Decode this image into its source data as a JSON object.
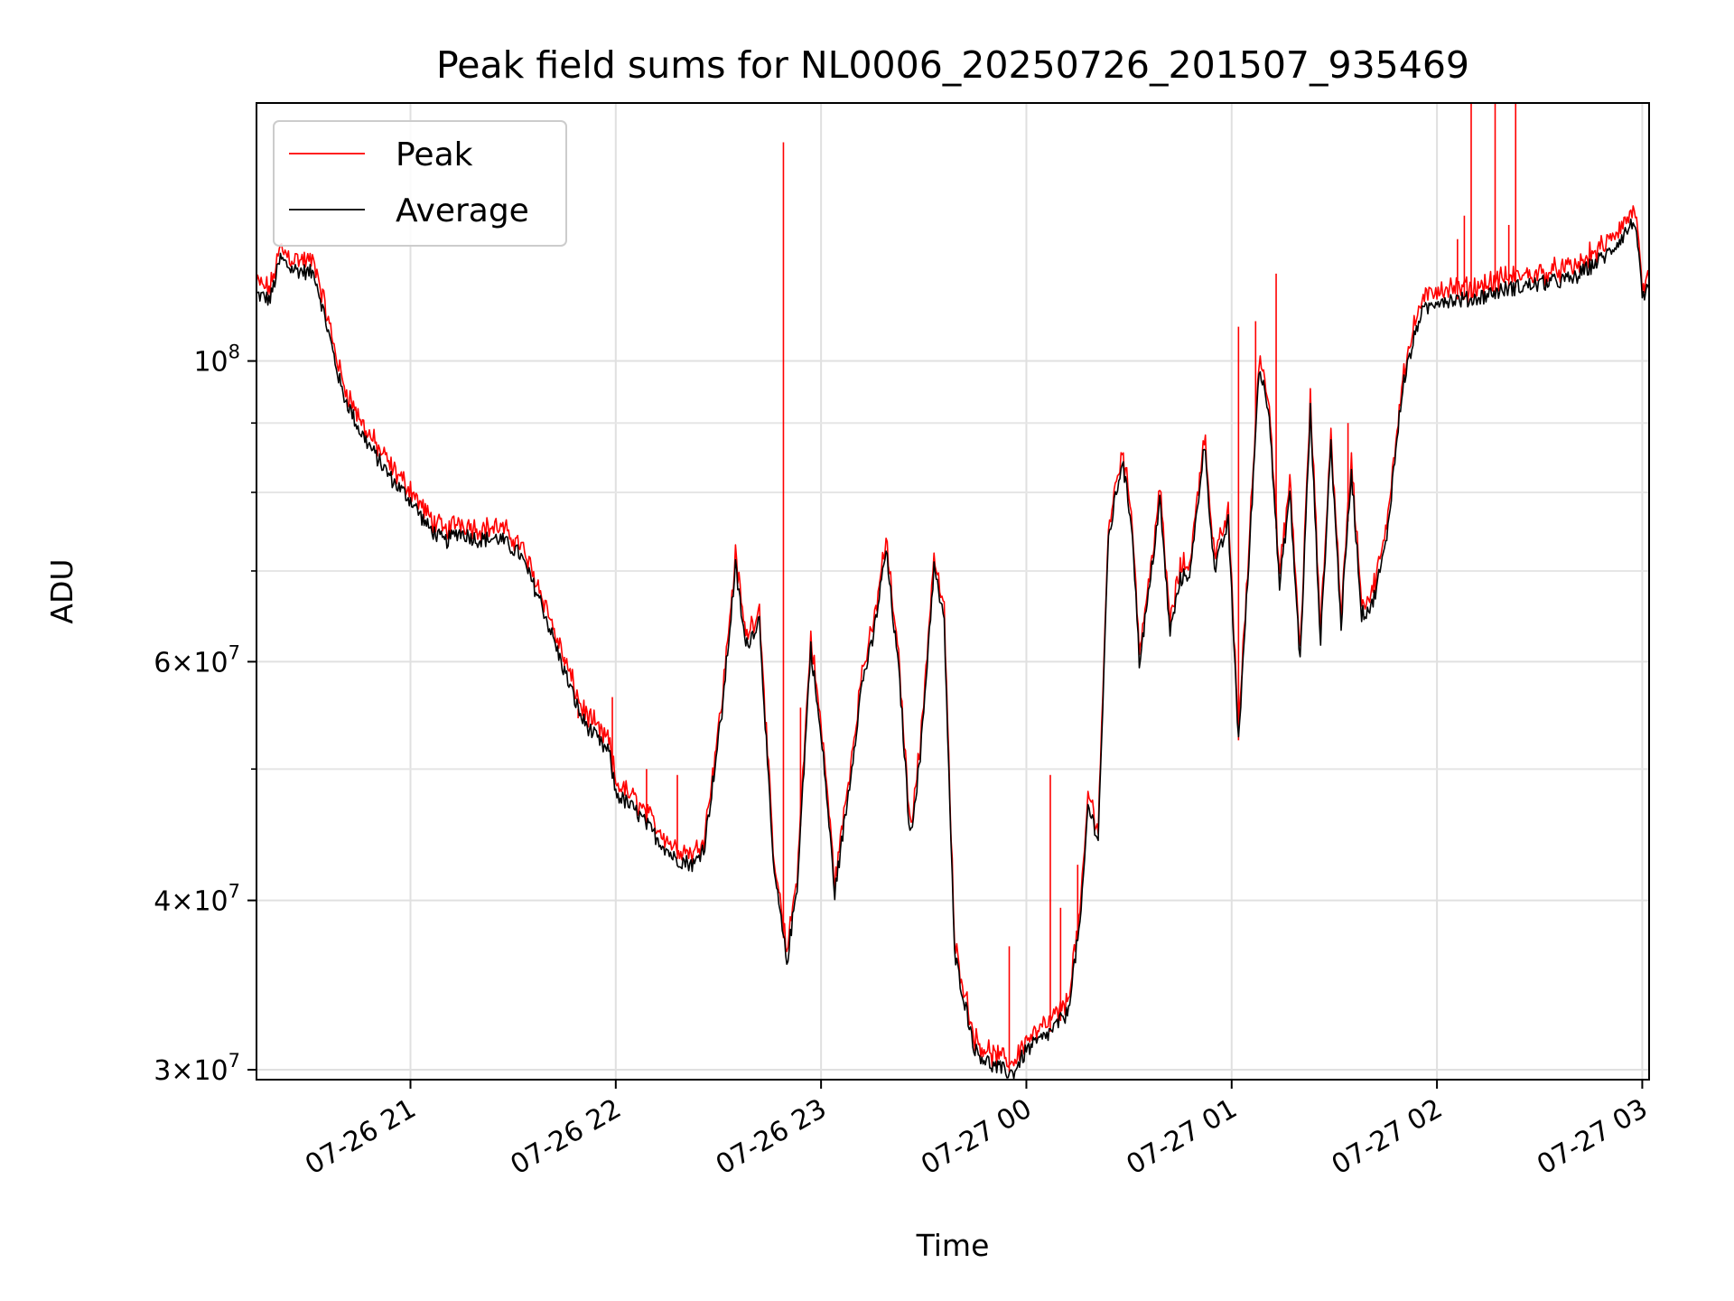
{
  "chart_data": {
    "type": "line",
    "title": "Peak field sums for NL0006_20250726_201507_935469",
    "xlabel": "Time",
    "ylabel": "ADU",
    "y_scale": "log",
    "ylim": [
      29500000,
      155000000
    ],
    "xlim": [
      "07-26 20:15",
      "07-27 03:02"
    ],
    "x_ticks": [
      "07-26 21",
      "07-26 22",
      "07-26 23",
      "07-27 00",
      "07-27 01",
      "07-27 02",
      "07-27 03"
    ],
    "x_tick_rotation": 30,
    "y_major_ticks": [
      {
        "value": 30000000,
        "mantissa": "3",
        "exponent": "7"
      },
      {
        "value": 40000000,
        "mantissa": "4",
        "exponent": "7"
      },
      {
        "value": 60000000,
        "mantissa": "6",
        "exponent": "7"
      },
      {
        "value": 100000000,
        "mantissa": "",
        "exponent": "8"
      }
    ],
    "y_base": "10",
    "y_times": "×",
    "y_minor_gridlines": [
      50000000,
      70000000,
      80000000,
      90000000
    ],
    "grid": true,
    "legend_position": "top-left",
    "series": [
      {
        "name": "Peak",
        "color": "#ff0000"
      },
      {
        "name": "Average",
        "color": "#000000"
      }
    ],
    "average_points": [
      [
        "07-26 20:15",
        112000000.0
      ],
      [
        "07-26 20:19",
        111000000.0
      ],
      [
        "07-26 20:22",
        119000000.0
      ],
      [
        "07-26 20:25",
        117000000.0
      ],
      [
        "07-26 20:32",
        116000000.0
      ],
      [
        "07-26 20:36",
        105000000.0
      ],
      [
        "07-26 20:40",
        95000000.0
      ],
      [
        "07-26 20:45",
        89000000.0
      ],
      [
        "07-26 20:50",
        85000000.0
      ],
      [
        "07-26 20:55",
        81500000.0
      ],
      [
        "07-26 21:00",
        79000000.0
      ],
      [
        "07-26 21:05",
        75500000.0
      ],
      [
        "07-26 21:10",
        73500000.0
      ],
      [
        "07-26 21:14",
        74800000.0
      ],
      [
        "07-26 21:20",
        73800000.0
      ],
      [
        "07-26 21:26",
        74000000.0
      ],
      [
        "07-26 21:32",
        72000000.0
      ],
      [
        "07-26 21:38",
        66500000.0
      ],
      [
        "07-26 21:44",
        60000000.0
      ],
      [
        "07-26 21:50",
        54500000.0
      ],
      [
        "07-26 21:56",
        52000000.0
      ],
      [
        "07-26 21:58",
        51500000.0
      ],
      [
        "07-26 22:00",
        48000000.0
      ],
      [
        "07-26 22:06",
        46500000.0
      ],
      [
        "07-26 22:12",
        44500000.0
      ],
      [
        "07-26 22:17",
        43000000.0
      ],
      [
        "07-26 22:23",
        42500000.0
      ],
      [
        "07-26 22:26",
        44000000.0
      ],
      [
        "07-26 22:31",
        55000000.0
      ],
      [
        "07-26 22:35",
        70500000.0
      ],
      [
        "07-26 22:38",
        61500000.0
      ],
      [
        "07-26 22:42",
        64500000.0
      ],
      [
        "07-26 22:46",
        42500000.0
      ],
      [
        "07-26 22:50",
        36000000.0
      ],
      [
        "07-26 22:53",
        41000000.0
      ],
      [
        "07-26 22:57",
        61500000.0
      ],
      [
        "07-26 23:01",
        50000000.0
      ],
      [
        "07-26 23:04",
        40500000.0
      ],
      [
        "07-26 23:08",
        48000000.0
      ],
      [
        "07-26 23:12",
        58000000.0
      ],
      [
        "07-26 23:15",
        62000000.0
      ],
      [
        "07-26 23:19",
        72500000.0
      ],
      [
        "07-26 23:23",
        58000000.0
      ],
      [
        "07-26 23:26",
        44500000.0
      ],
      [
        "07-26 23:29",
        51000000.0
      ],
      [
        "07-26 23:33",
        70500000.0
      ],
      [
        "07-26 23:36",
        64000000.0
      ],
      [
        "07-26 23:39",
        36500000.0
      ],
      [
        "07-26 23:45",
        31000000.0
      ],
      [
        "07-26 23:50",
        30200000.0
      ],
      [
        "07-26 23:56",
        29800000.0
      ],
      [
        "07-27 00:00",
        31000000.0
      ],
      [
        "07-27 00:06",
        31800000.0
      ],
      [
        "07-27 00:12",
        33000000.0
      ],
      [
        "07-27 00:16",
        39000000.0
      ],
      [
        "07-27 00:18",
        47000000.0
      ],
      [
        "07-27 00:21",
        44500000.0
      ],
      [
        "07-27 00:24",
        74000000.0
      ],
      [
        "07-27 00:28",
        84500000.0
      ],
      [
        "07-27 00:31",
        75000000.0
      ],
      [
        "07-27 00:33",
        60000000.0
      ],
      [
        "07-27 00:36",
        68000000.0
      ],
      [
        "07-27 00:39",
        79000000.0
      ],
      [
        "07-27 00:42",
        63000000.0
      ],
      [
        "07-27 00:45",
        69000000.0
      ],
      [
        "07-27 00:48",
        70000000.0
      ],
      [
        "07-27 00:52",
        87000000.0
      ],
      [
        "07-27 00:55",
        70000000.0
      ],
      [
        "07-27 00:59",
        76000000.0
      ],
      [
        "07-27 01:02",
        52500000.0
      ],
      [
        "07-27 01:05",
        71000000.0
      ],
      [
        "07-27 01:08",
        99000000.0
      ],
      [
        "07-27 01:11",
        92000000.0
      ],
      [
        "07-27 01:14",
        68000000.0
      ],
      [
        "07-27 01:17",
        80000000.0
      ],
      [
        "07-27 01:20",
        60000000.0
      ],
      [
        "07-27 01:23",
        92000000.0
      ],
      [
        "07-27 01:26",
        62000000.0
      ],
      [
        "07-27 01:29",
        87000000.0
      ],
      [
        "07-27 01:32",
        64000000.0
      ],
      [
        "07-27 01:35",
        83000000.0
      ],
      [
        "07-27 01:38",
        65000000.0
      ],
      [
        "07-27 01:41",
        66000000.0
      ],
      [
        "07-27 01:45",
        73000000.0
      ],
      [
        "07-27 01:50",
        96000000.0
      ],
      [
        "07-27 01:55",
        108000000.0
      ],
      [
        "07-27 02:00",
        111000000.0
      ],
      [
        "07-27 02:10",
        111000000.0
      ],
      [
        "07-27 02:20",
        113000000.0
      ],
      [
        "07-27 02:30",
        114000000.0
      ],
      [
        "07-27 02:40",
        115000000.0
      ],
      [
        "07-27 02:50",
        120000000.0
      ],
      [
        "07-27 02:58",
        127000000.0
      ],
      [
        "07-27 03:00",
        111000000.0
      ],
      [
        "07-27 03:02",
        113000000.0
      ]
    ],
    "peak_spikes": [
      [
        "07-26 21:45",
        60500000.0
      ],
      [
        "07-26 21:49",
        54500000.0
      ],
      [
        "07-26 21:59",
        56500000.0
      ],
      [
        "07-26 22:09",
        50000000.0
      ],
      [
        "07-26 22:18",
        49500000.0
      ],
      [
        "07-26 22:49",
        145000000.0
      ],
      [
        "07-26 22:54",
        55500000.0
      ],
      [
        "07-26 23:33",
        70500000.0
      ],
      [
        "07-26 23:55",
        37000000.0
      ],
      [
        "07-27 00:07",
        49500000.0
      ],
      [
        "07-27 00:10",
        39500000.0
      ],
      [
        "07-27 00:15",
        42500000.0
      ],
      [
        "07-27 01:02",
        106000000.0
      ],
      [
        "07-27 01:07",
        107000000.0
      ],
      [
        "07-27 01:13",
        116000000.0
      ],
      [
        "07-27 01:34",
        90000000.0
      ],
      [
        "07-27 02:06",
        123000000.0
      ],
      [
        "07-27 02:08",
        128000000.0
      ],
      [
        "07-27 02:10",
        155000000.0
      ],
      [
        "07-27 02:17",
        155000000.0
      ],
      [
        "07-27 02:21",
        126000000.0
      ],
      [
        "07-27 02:23",
        155000000.0
      ]
    ]
  }
}
